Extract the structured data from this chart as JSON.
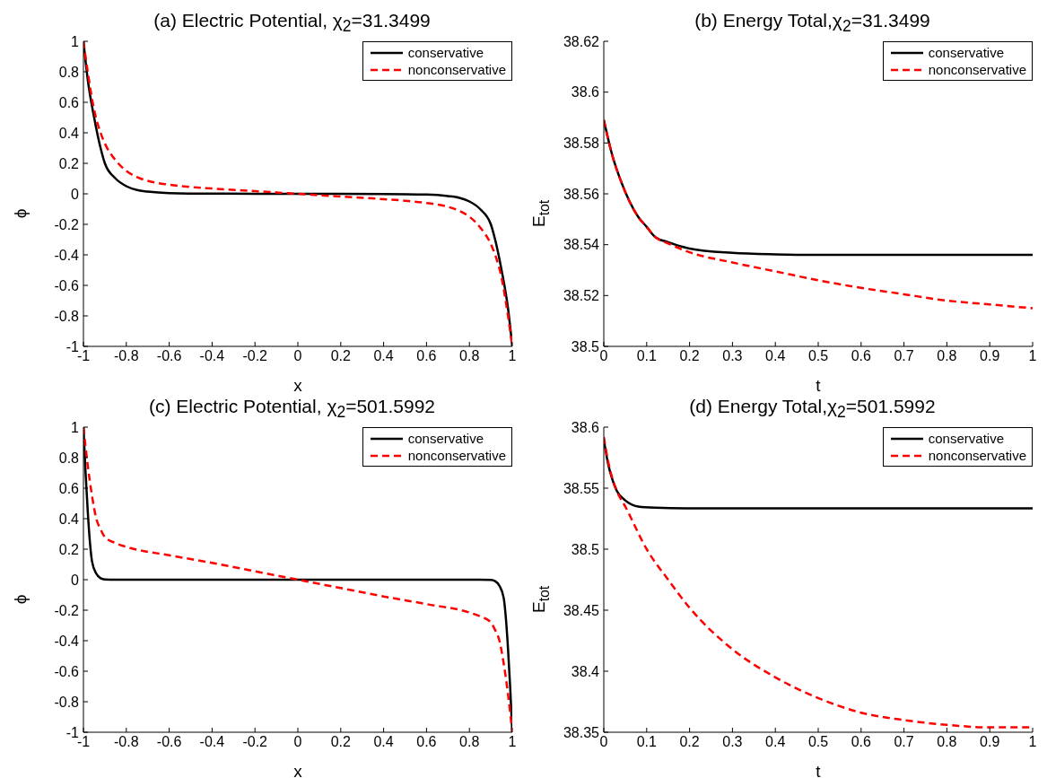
{
  "chart_data": [
    {
      "type": "line",
      "title": "(a) Electric Potential, χ$_{2}$=31.3499",
      "xlabel": "x",
      "ylabel": "ϕ",
      "xlim": [
        -1,
        1
      ],
      "xticks": [
        -1,
        -0.8,
        -0.6,
        -0.4,
        -0.2,
        0,
        0.2,
        0.4,
        0.6,
        0.8,
        1
      ],
      "ylim": [
        -1,
        1
      ],
      "yticks": [
        -1,
        -0.8,
        -0.6,
        -0.4,
        -0.2,
        0,
        0.2,
        0.4,
        0.6,
        0.8,
        1
      ],
      "legend": "top right",
      "series": [
        {
          "name": "conservative",
          "color": "#000000",
          "line_style": "solid",
          "x": [
            -1,
            -0.98,
            -0.95,
            -0.92,
            -0.9,
            -0.85,
            -0.8,
            -0.75,
            -0.7,
            -0.6,
            -0.4,
            0,
            0.4,
            0.6,
            0.7,
            0.75,
            0.8,
            0.85,
            0.9,
            0.92,
            0.95,
            0.98,
            1
          ],
          "values": [
            1,
            0.75,
            0.5,
            0.3,
            0.2,
            0.1,
            0.05,
            0.025,
            0.015,
            0.005,
            0.001,
            0,
            -0.001,
            -0.005,
            -0.015,
            -0.025,
            -0.05,
            -0.1,
            -0.2,
            -0.3,
            -0.5,
            -0.75,
            -1
          ]
        },
        {
          "name": "nonconservative",
          "color": "#ff0000",
          "line_style": "dashed",
          "x": [
            -1,
            -0.98,
            -0.95,
            -0.92,
            -0.9,
            -0.85,
            -0.8,
            -0.75,
            -0.7,
            -0.6,
            -0.5,
            -0.4,
            -0.2,
            0,
            0.2,
            0.4,
            0.5,
            0.6,
            0.7,
            0.75,
            0.8,
            0.85,
            0.9,
            0.92,
            0.95,
            0.98,
            1
          ],
          "values": [
            1,
            0.8,
            0.55,
            0.4,
            0.33,
            0.22,
            0.15,
            0.11,
            0.085,
            0.06,
            0.045,
            0.035,
            0.018,
            0,
            -0.018,
            -0.035,
            -0.045,
            -0.06,
            -0.085,
            -0.11,
            -0.15,
            -0.22,
            -0.33,
            -0.4,
            -0.55,
            -0.8,
            -1
          ]
        }
      ]
    },
    {
      "type": "line",
      "title": "(b) Energy Total,χ$_{2}$=31.3499",
      "xlabel": "t",
      "ylabel": "E$_{tot}$",
      "xlim": [
        0,
        1
      ],
      "xticks": [
        0,
        0.1,
        0.2,
        0.3,
        0.4,
        0.5,
        0.6,
        0.7,
        0.8,
        0.9,
        1
      ],
      "ylim": [
        38.5,
        38.62
      ],
      "yticks": [
        38.5,
        38.52,
        38.54,
        38.56,
        38.58,
        38.6,
        38.62
      ],
      "legend": "top right",
      "series": [
        {
          "name": "conservative",
          "color": "#000000",
          "line_style": "solid",
          "x": [
            0,
            0.02,
            0.04,
            0.06,
            0.08,
            0.1,
            0.12,
            0.15,
            0.2,
            0.3,
            0.4,
            0.5,
            1
          ],
          "values": [
            38.589,
            38.575,
            38.565,
            38.557,
            38.551,
            38.547,
            38.543,
            38.541,
            38.5385,
            38.5368,
            38.5362,
            38.536,
            38.536
          ]
        },
        {
          "name": "nonconservative",
          "color": "#ff0000",
          "line_style": "dashed",
          "x": [
            0,
            0.02,
            0.04,
            0.06,
            0.08,
            0.1,
            0.12,
            0.15,
            0.2,
            0.3,
            0.4,
            0.5,
            0.6,
            0.7,
            0.8,
            0.9,
            1
          ],
          "values": [
            38.589,
            38.575,
            38.565,
            38.557,
            38.551,
            38.547,
            38.543,
            38.5405,
            38.537,
            38.533,
            38.5295,
            38.526,
            38.523,
            38.5205,
            38.518,
            38.5165,
            38.515
          ]
        }
      ]
    },
    {
      "type": "line",
      "title": "(c) Electric Potential, χ$_{2}$=501.5992",
      "xlabel": "x",
      "ylabel": "ϕ",
      "xlim": [
        -1,
        1
      ],
      "xticks": [
        -1,
        -0.8,
        -0.6,
        -0.4,
        -0.2,
        0,
        0.2,
        0.4,
        0.6,
        0.8,
        1
      ],
      "ylim": [
        -1,
        1
      ],
      "yticks": [
        -1,
        -0.8,
        -0.6,
        -0.4,
        -0.2,
        0,
        0.2,
        0.4,
        0.6,
        0.8,
        1
      ],
      "legend": "top right",
      "series": [
        {
          "name": "conservative",
          "color": "#000000",
          "line_style": "solid",
          "x": [
            -1,
            -0.99,
            -0.98,
            -0.97,
            -0.96,
            -0.94,
            -0.92,
            -0.9,
            -0.85,
            0.85,
            0.9,
            0.92,
            0.94,
            0.96,
            0.97,
            0.98,
            0.99,
            1
          ],
          "values": [
            1,
            0.7,
            0.45,
            0.25,
            0.12,
            0.04,
            0.01,
            0.002,
            0,
            0,
            -0.002,
            -0.01,
            -0.04,
            -0.12,
            -0.25,
            -0.45,
            -0.7,
            -1
          ]
        },
        {
          "name": "nonconservative",
          "color": "#ff0000",
          "line_style": "dashed",
          "x": [
            -1,
            -0.98,
            -0.96,
            -0.94,
            -0.92,
            -0.9,
            -0.85,
            -0.8,
            -0.6,
            -0.4,
            -0.2,
            0,
            0.2,
            0.4,
            0.6,
            0.8,
            0.85,
            0.9,
            0.92,
            0.94,
            0.96,
            0.98,
            1
          ],
          "values": [
            1,
            0.75,
            0.55,
            0.4,
            0.33,
            0.28,
            0.24,
            0.215,
            0.16,
            0.11,
            0.055,
            0,
            -0.055,
            -0.11,
            -0.16,
            -0.215,
            -0.24,
            -0.28,
            -0.33,
            -0.4,
            -0.55,
            -0.75,
            -1
          ]
        }
      ]
    },
    {
      "type": "line",
      "title": "(d) Energy Total,χ$_{2}$=501.5992",
      "xlabel": "t",
      "ylabel": "E$_{tot}$",
      "xlim": [
        0,
        1
      ],
      "xticks": [
        0,
        0.1,
        0.2,
        0.3,
        0.4,
        0.5,
        0.6,
        0.7,
        0.8,
        0.9,
        1
      ],
      "ylim": [
        38.35,
        38.6
      ],
      "yticks": [
        38.35,
        38.4,
        38.45,
        38.5,
        38.55,
        38.6
      ],
      "legend": "top right",
      "series": [
        {
          "name": "conservative",
          "color": "#000000",
          "line_style": "solid",
          "x": [
            0,
            0.01,
            0.02,
            0.03,
            0.05,
            0.08,
            0.12,
            0.2,
            1
          ],
          "values": [
            38.59,
            38.57,
            38.557,
            38.548,
            38.54,
            38.535,
            38.534,
            38.5335,
            38.5335
          ]
        },
        {
          "name": "nonconservative",
          "color": "#ff0000",
          "line_style": "dashed",
          "x": [
            0,
            0.01,
            0.02,
            0.03,
            0.05,
            0.1,
            0.15,
            0.2,
            0.3,
            0.4,
            0.5,
            0.6,
            0.7,
            0.8,
            0.9,
            1
          ],
          "values": [
            38.592,
            38.572,
            38.558,
            38.548,
            38.535,
            38.5,
            38.475,
            38.452,
            38.418,
            38.395,
            38.378,
            38.366,
            38.36,
            38.356,
            38.354,
            38.354
          ]
        }
      ]
    }
  ]
}
